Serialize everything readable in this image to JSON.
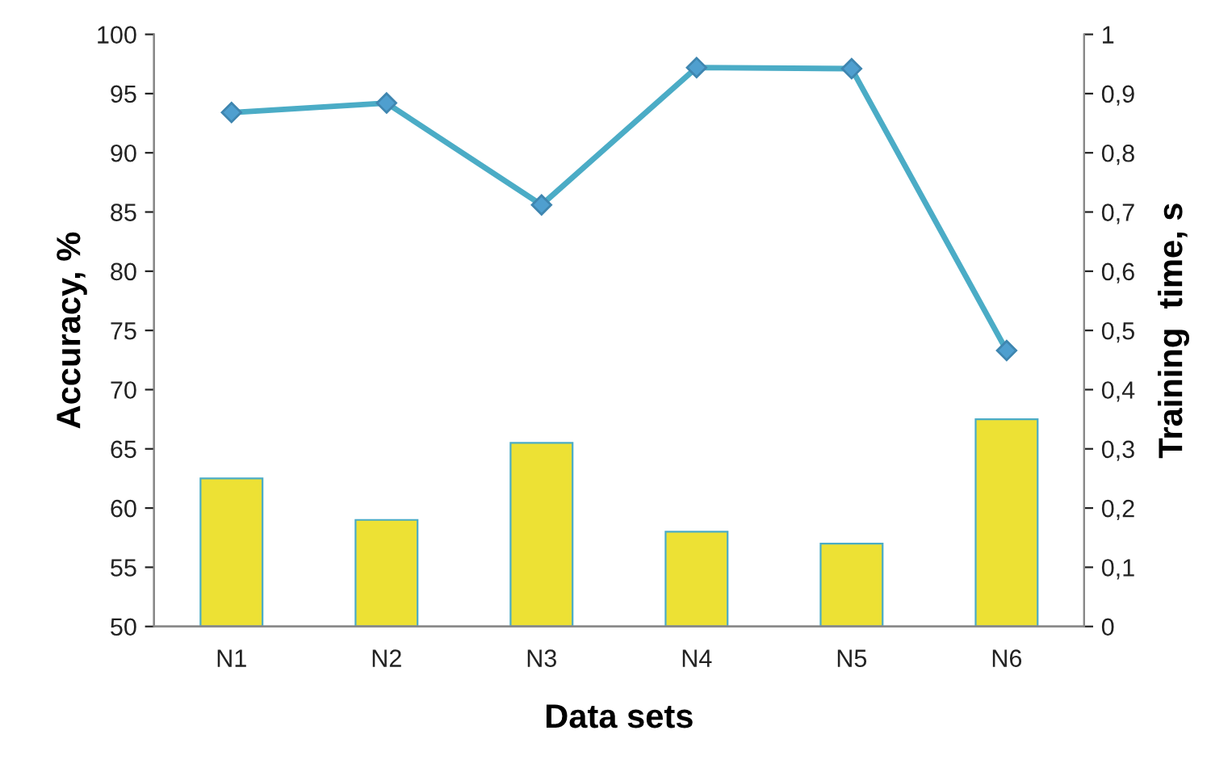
{
  "chart_data": {
    "type": "bar",
    "xlabel": "Data sets",
    "ylabel": "Accuracy, %",
    "y2label": "Training  time, s",
    "categories": [
      "N1",
      "N2",
      "N3",
      "N4",
      "N5",
      "N6"
    ],
    "series": [
      {
        "type": "line",
        "color": "#4bacc6",
        "marker": "diamond",
        "values": [
          93.4,
          94.2,
          85.6,
          97.2,
          97.1,
          73.3
        ]
      },
      {
        "axis": "y2",
        "color": "#ede134",
        "values": [
          0.25,
          0.18,
          0.31,
          0.16,
          0.14,
          0.35
        ]
      }
    ],
    "ylim": [
      50,
      100
    ],
    "yticks": [
      50,
      55,
      60,
      65,
      70,
      75,
      80,
      85,
      90,
      95,
      100
    ],
    "y2lim": [
      0,
      1
    ],
    "y2ticks": [
      0,
      {
        "value": 0.1,
        "label": "0,1"
      },
      {
        "value": 0.2,
        "label": "0,2"
      },
      {
        "value": 0.3,
        "label": "0,3"
      },
      {
        "value": 0.4,
        "label": "0,4"
      },
      {
        "value": 0.5,
        "label": "0,5"
      },
      {
        "value": 0.6,
        "label": "0,6"
      },
      {
        "value": 0.7,
        "label": "0,7"
      },
      {
        "value": 0.8,
        "label": "0,8"
      },
      {
        "value": 0.9,
        "label": "0,9"
      },
      1
    ],
    "grid": false,
    "legend": false
  }
}
